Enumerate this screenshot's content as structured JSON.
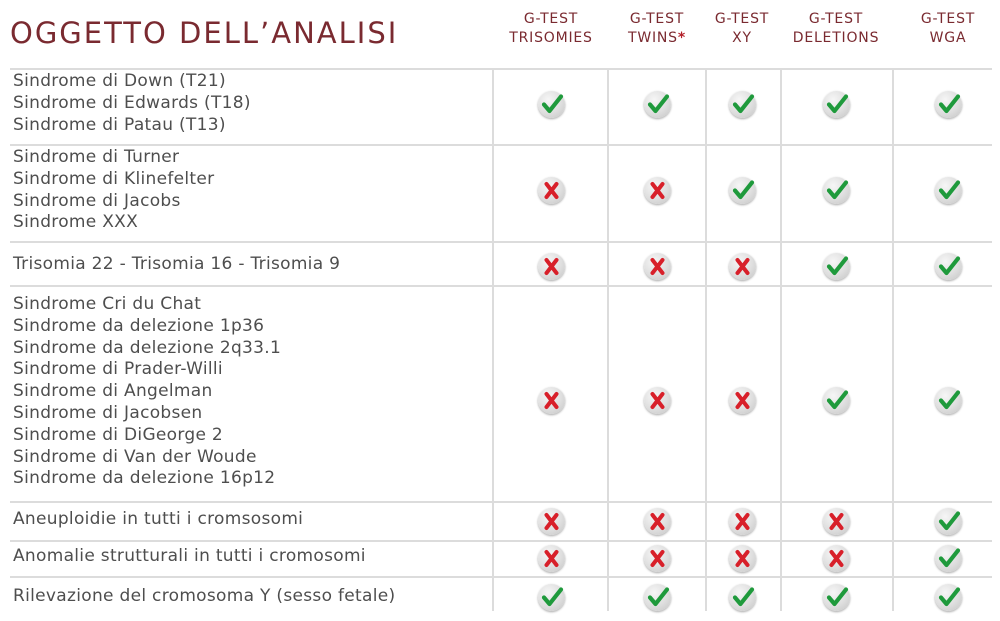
{
  "title": "OGGETTO DELL’ANALISI",
  "columns": [
    {
      "line1": "G-TEST",
      "line2": "TRISOMIES",
      "star": ""
    },
    {
      "line1": "G-TEST",
      "line2": "TWINS",
      "star": "*"
    },
    {
      "line1": "G-TEST",
      "line2": "XY",
      "star": ""
    },
    {
      "line1": "G-TEST",
      "line2": "DELETIONS",
      "star": ""
    },
    {
      "line1": "G-TEST",
      "line2": "WGA",
      "star": ""
    }
  ],
  "rows": [
    {
      "labels": [
        "Sindrome di Down (T21)",
        "Sindrome di Edwards (T18)",
        "Sindrome di Patau (T13)"
      ],
      "results": [
        "check-icon",
        "check-icon",
        "check-icon",
        "check-icon",
        "check-icon"
      ]
    },
    {
      "labels": [
        "Sindrome di Turner",
        "Sindrome di Klinefelter",
        "Sindrome di Jacobs",
        "Sindrome XXX"
      ],
      "results": [
        "cross-icon",
        "cross-icon",
        "check-icon",
        "check-icon",
        "check-icon"
      ]
    },
    {
      "labels": [
        "Trisomia 22 - Trisomia 16 - Trisomia 9"
      ],
      "results": [
        "cross-icon",
        "cross-icon",
        "cross-icon",
        "check-icon",
        "check-icon"
      ]
    },
    {
      "labels": [
        "Sindrome Cri du Chat",
        "Sindrome da delezione 1p36",
        "Sindrome da delezione 2q33.1",
        "Sindrome di Prader-Willi",
        "Sindrome di Angelman",
        "Sindrome di Jacobsen",
        "Sindrome di DiGeorge 2",
        "Sindrome di Van der Woude",
        "Sindrome da delezione 16p12"
      ],
      "results": [
        "cross-icon",
        "cross-icon",
        "cross-icon",
        "check-icon",
        "check-icon"
      ]
    },
    {
      "labels": [
        "Aneuploidie in tutti i cromsosomi"
      ],
      "results": [
        "cross-icon",
        "cross-icon",
        "cross-icon",
        "cross-icon",
        "check-icon"
      ]
    },
    {
      "labels": [
        "Anomalie strutturali in tutti i cromosomi"
      ],
      "results": [
        "cross-icon",
        "cross-icon",
        "cross-icon",
        "cross-icon",
        "check-icon"
      ]
    },
    {
      "labels": [
        "Rilevazione del cromosoma Y (sesso fetale)"
      ],
      "results": [
        "check-icon",
        "check-icon",
        "check-icon",
        "check-icon",
        "check-icon"
      ]
    }
  ],
  "colors": {
    "heading": "#7a2a30",
    "text": "#4e4e4e",
    "check": "#1f9a3c",
    "cross": "#d8202a",
    "grid": "#dcdcdc"
  }
}
